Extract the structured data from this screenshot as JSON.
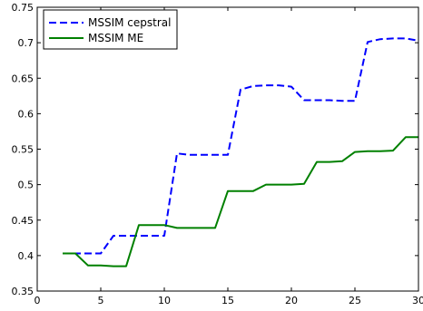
{
  "chart_data": {
    "type": "line",
    "title": "",
    "xlabel": "",
    "ylabel": "",
    "xlim": [
      0,
      30
    ],
    "ylim": [
      0.35,
      0.75
    ],
    "xticks": [
      0,
      5,
      10,
      15,
      20,
      25,
      30
    ],
    "yticks": [
      0.35,
      0.4,
      0.45,
      0.5,
      0.55,
      0.6,
      0.65,
      0.7,
      0.75
    ],
    "xtick_labels": [
      "0",
      "5",
      "10",
      "15",
      "20",
      "25",
      "30"
    ],
    "ytick_labels": [
      "0.35",
      "0.4",
      "0.45",
      "0.5",
      "0.55",
      "0.6",
      "0.65",
      "0.7",
      "0.75"
    ],
    "grid": false,
    "legend": {
      "position": "top-left"
    },
    "series": [
      {
        "name": "MSSIM cepstral",
        "color": "#0000ff",
        "style": "dashed",
        "x": [
          2,
          3,
          4,
          5,
          6,
          7,
          8,
          9,
          10,
          11,
          12,
          13,
          14,
          15,
          16,
          17,
          18,
          19,
          20,
          21,
          22,
          23,
          24,
          25,
          26,
          27,
          28,
          29,
          30
        ],
        "y": [
          0.403,
          0.403,
          0.403,
          0.403,
          0.428,
          0.428,
          0.428,
          0.428,
          0.428,
          0.544,
          0.542,
          0.542,
          0.542,
          0.542,
          0.634,
          0.639,
          0.64,
          0.64,
          0.638,
          0.619,
          0.619,
          0.619,
          0.618,
          0.618,
          0.701,
          0.705,
          0.706,
          0.706,
          0.703
        ]
      },
      {
        "name": "MSSIM ME",
        "color": "#008000",
        "style": "solid",
        "x": [
          2,
          3,
          4,
          5,
          6,
          7,
          8,
          9,
          10,
          11,
          12,
          13,
          14,
          15,
          16,
          17,
          18,
          19,
          20,
          21,
          22,
          23,
          24,
          25,
          26,
          27,
          28,
          29,
          30
        ],
        "y": [
          0.403,
          0.403,
          0.386,
          0.386,
          0.385,
          0.385,
          0.443,
          0.443,
          0.443,
          0.439,
          0.439,
          0.439,
          0.439,
          0.491,
          0.491,
          0.491,
          0.5,
          0.5,
          0.5,
          0.501,
          0.532,
          0.532,
          0.533,
          0.546,
          0.547,
          0.547,
          0.548,
          0.567,
          0.567
        ]
      }
    ]
  }
}
